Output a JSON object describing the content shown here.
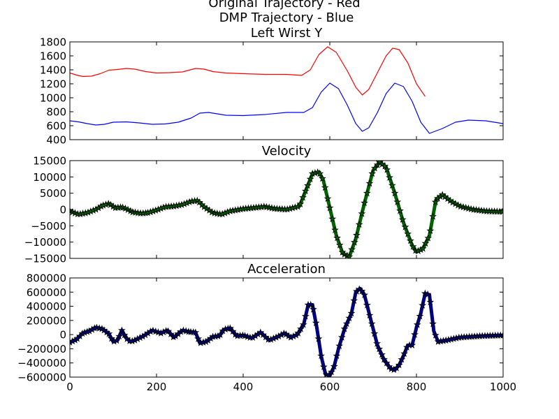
{
  "figure_titles": [
    "Original Trajectory - Red",
    "DMP Trajectory - Blue"
  ],
  "chart_data": [
    {
      "type": "line",
      "title": "Left Wirst Y",
      "xlim": [
        0,
        1000
      ],
      "ylim": [
        400,
        1800
      ],
      "yticks": [
        400,
        600,
        800,
        1000,
        1200,
        1400,
        1600,
        1800
      ],
      "xticks": [
        0,
        200,
        400,
        600,
        800,
        1000
      ],
      "show_xtick_labels": false,
      "grid": false,
      "series": [
        {
          "color": "#ff0000",
          "x": [
            0,
            15,
            30,
            50,
            70,
            90,
            110,
            130,
            150,
            175,
            200,
            230,
            260,
            290,
            310,
            330,
            360,
            400,
            450,
            500,
            535,
            555,
            575,
            595,
            615,
            640,
            660,
            675,
            690,
            710,
            730,
            745,
            760,
            780,
            800,
            820
          ],
          "y": [
            1355,
            1325,
            1305,
            1310,
            1345,
            1395,
            1405,
            1420,
            1410,
            1375,
            1355,
            1360,
            1370,
            1420,
            1410,
            1375,
            1355,
            1345,
            1335,
            1335,
            1320,
            1400,
            1620,
            1730,
            1650,
            1390,
            1150,
            1040,
            1120,
            1360,
            1600,
            1710,
            1690,
            1500,
            1200,
            1020
          ]
        },
        {
          "color": "#0000ff",
          "x": [
            0,
            20,
            40,
            60,
            80,
            100,
            130,
            160,
            190,
            220,
            250,
            280,
            300,
            320,
            340,
            360,
            400,
            450,
            500,
            540,
            560,
            580,
            600,
            620,
            640,
            660,
            675,
            690,
            710,
            730,
            750,
            770,
            790,
            810,
            830,
            860,
            890,
            920,
            960,
            1000
          ],
          "y": [
            670,
            655,
            630,
            610,
            620,
            650,
            655,
            640,
            620,
            625,
            650,
            710,
            780,
            790,
            770,
            750,
            745,
            760,
            790,
            790,
            860,
            1080,
            1210,
            1130,
            900,
            630,
            520,
            570,
            790,
            1060,
            1210,
            1160,
            950,
            650,
            490,
            560,
            650,
            680,
            670,
            630
          ]
        }
      ]
    },
    {
      "type": "line",
      "title": "Velocity",
      "xlim": [
        0,
        1000
      ],
      "ylim": [
        -15000,
        15000
      ],
      "yticks": [
        -15000,
        -10000,
        -5000,
        0,
        5000,
        10000,
        15000
      ],
      "xticks": [
        0,
        200,
        400,
        600,
        800,
        1000
      ],
      "show_xtick_labels": false,
      "grid": false,
      "series": [
        {
          "color": "#006400",
          "marker": "*",
          "x": [
            0,
            20,
            40,
            60,
            75,
            90,
            105,
            120,
            130,
            145,
            165,
            180,
            200,
            220,
            240,
            260,
            280,
            295,
            310,
            330,
            350,
            370,
            400,
            430,
            450,
            470,
            500,
            530,
            545,
            560,
            575,
            585,
            600,
            615,
            630,
            645,
            660,
            680,
            700,
            715,
            730,
            750,
            770,
            790,
            800,
            815,
            830,
            845,
            860,
            880,
            900,
            930,
            960,
            1000
          ],
          "y": [
            -500,
            -1500,
            -1000,
            0,
            1200,
            1800,
            500,
            700,
            200,
            -800,
            -1200,
            -1000,
            -200,
            800,
            1000,
            1500,
            2500,
            2700,
            800,
            -1000,
            -1500,
            -500,
            200,
            600,
            900,
            300,
            0,
            1000,
            6000,
            11000,
            11500,
            9000,
            500,
            -8000,
            -13500,
            -14500,
            -9000,
            2000,
            12000,
            14500,
            13000,
            5000,
            -4000,
            -11000,
            -13000,
            -12000,
            -8000,
            3000,
            4500,
            2500,
            1000,
            0,
            -500,
            -700
          ]
        }
      ]
    },
    {
      "type": "line",
      "title": "Acceleration",
      "xlim": [
        0,
        1000
      ],
      "ylim": [
        -600000,
        800000
      ],
      "yticks": [
        -600000,
        -400000,
        -200000,
        0,
        200000,
        400000,
        600000,
        800000
      ],
      "xticks": [
        0,
        200,
        400,
        600,
        800,
        1000
      ],
      "xtick_labels": [
        "0",
        "200",
        "400",
        "600",
        "800",
        "1000"
      ],
      "show_xtick_labels": true,
      "grid": false,
      "series": [
        {
          "color": "#000080",
          "marker": "*",
          "x": [
            0,
            15,
            30,
            45,
            60,
            75,
            90,
            100,
            110,
            120,
            130,
            140,
            150,
            170,
            190,
            210,
            225,
            240,
            260,
            275,
            290,
            300,
            315,
            330,
            345,
            355,
            370,
            385,
            400,
            420,
            440,
            460,
            480,
            495,
            510,
            525,
            540,
            550,
            560,
            570,
            580,
            590,
            600,
            610,
            620,
            635,
            650,
            660,
            670,
            680,
            695,
            710,
            725,
            740,
            750,
            760,
            770,
            780,
            790,
            800,
            810,
            820,
            830,
            840,
            850,
            870,
            900,
            950,
            1000
          ],
          "y": [
            -110000,
            -70000,
            20000,
            50000,
            100000,
            80000,
            10000,
            -100000,
            -80000,
            60000,
            -50000,
            -100000,
            -80000,
            -20000,
            60000,
            20000,
            60000,
            -40000,
            60000,
            40000,
            30000,
            -120000,
            -100000,
            -30000,
            -20000,
            70000,
            90000,
            -20000,
            -10000,
            -50000,
            30000,
            -80000,
            -30000,
            20000,
            -40000,
            0,
            150000,
            420000,
            420000,
            100000,
            -300000,
            -560000,
            -580000,
            -450000,
            -200000,
            100000,
            300000,
            600000,
            650000,
            560000,
            200000,
            -150000,
            -350000,
            -480000,
            -500000,
            -430000,
            -300000,
            -150000,
            -150000,
            100000,
            300000,
            580000,
            560000,
            50000,
            -100000,
            -80000,
            -40000,
            -20000,
            -10000
          ]
        }
      ]
    }
  ]
}
